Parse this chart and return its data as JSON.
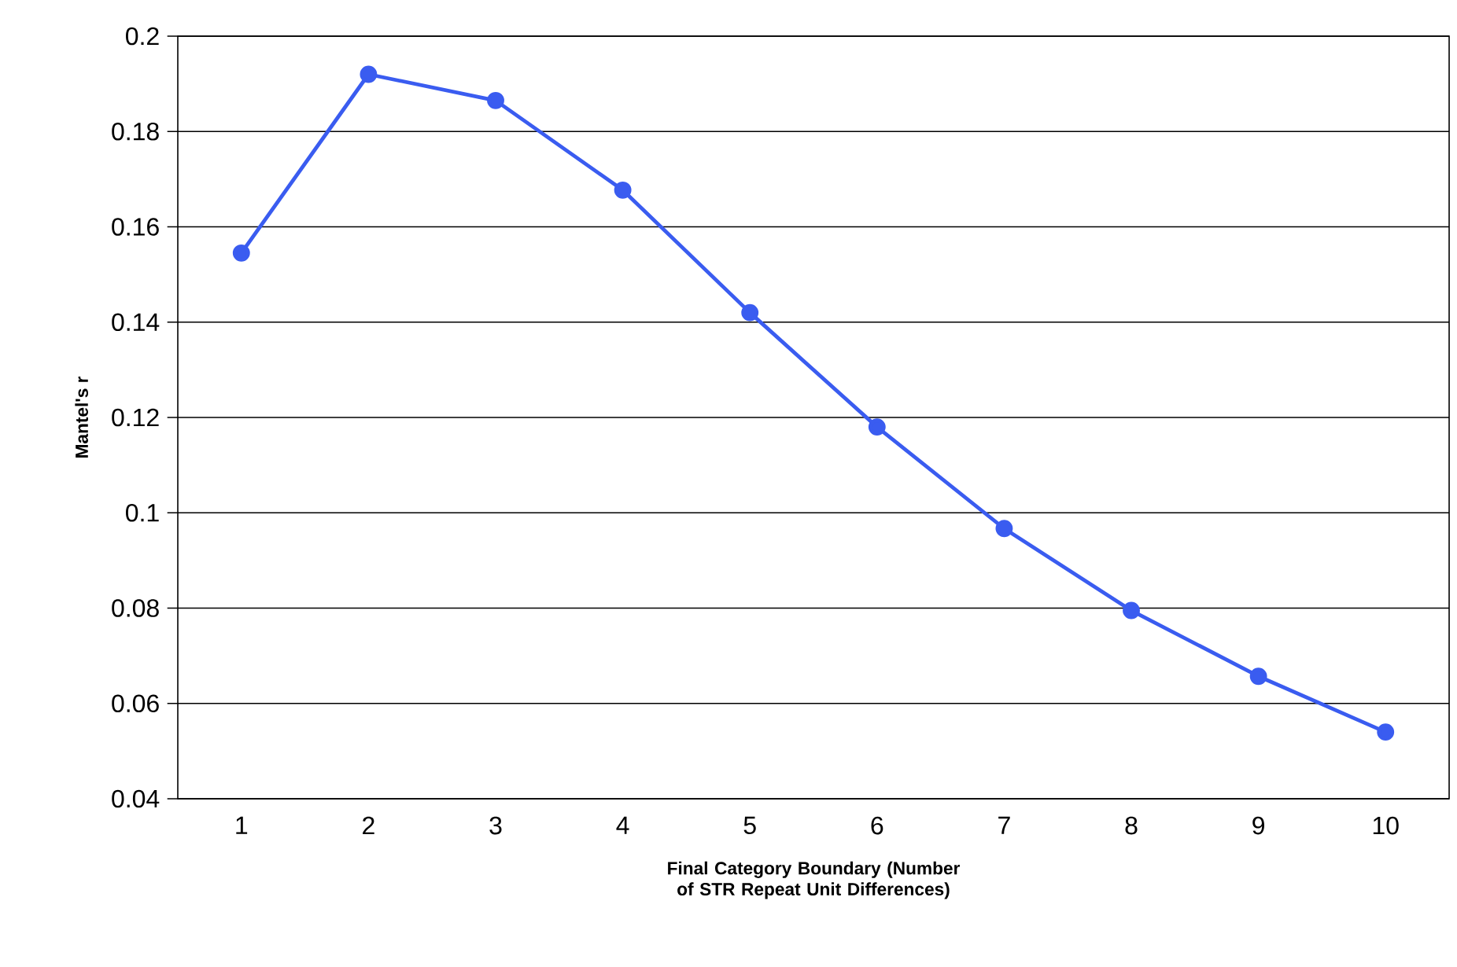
{
  "chart_data": {
    "type": "line",
    "xlabel": "Final Category Boundary (Number of STR Repeat Unit Differences)",
    "ylabel": "Mantel's r",
    "categories": [
      "1",
      "2",
      "3",
      "4",
      "5",
      "6",
      "7",
      "8",
      "9",
      "10"
    ],
    "values": [
      0.1545,
      0.192,
      0.1865,
      0.1677,
      0.142,
      0.118,
      0.0967,
      0.0795,
      0.0657,
      0.054
    ],
    "color": "#3a5cf0",
    "ylim": [
      0.04,
      0.2
    ],
    "yticks": [
      0.04,
      0.06,
      0.08,
      0.1,
      0.12,
      0.14,
      0.16,
      0.18,
      0.2
    ],
    "grid": "y",
    "marker": "circle"
  }
}
